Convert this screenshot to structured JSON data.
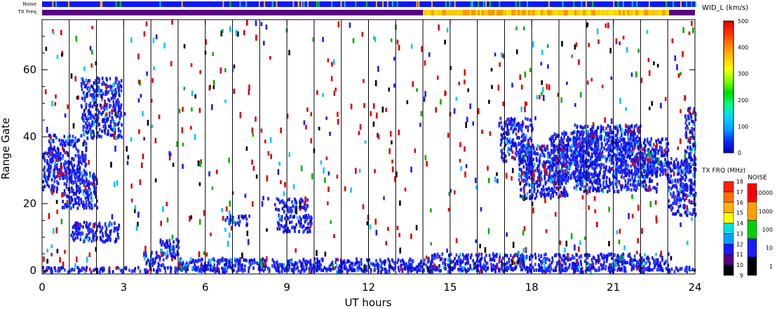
{
  "chart_data": {
    "type": "heatmap",
    "strips": {
      "noise_label": "Noise",
      "txfreq_label": "TX Freq",
      "noise_color": "#0d1aff",
      "txfreq_base_color": "#5a0080",
      "txfreq_high_segment": {
        "x_start": 14.0,
        "x_end": 23.0,
        "colors": [
          "#ff9a00",
          "#ffd000",
          "#ffe600"
        ]
      }
    },
    "xlabel": "UT hours",
    "ylabel": "Range Gate",
    "xlim": [
      0,
      24
    ],
    "ylim": [
      -1,
      75
    ],
    "x_ticks": [
      0,
      3,
      6,
      9,
      12,
      15,
      18,
      21,
      24
    ],
    "y_ticks": [
      0,
      20,
      40,
      60
    ],
    "hour_lines": [
      1,
      2,
      3,
      4,
      5,
      6,
      7,
      8,
      9,
      10,
      11,
      12,
      13,
      14,
      15,
      16,
      17,
      18,
      19,
      20,
      21,
      22,
      23
    ],
    "regions": [
      {
        "x0": 0.0,
        "x1": 24.0,
        "y0": 0,
        "y1": 1.5
      },
      {
        "x0": 5.0,
        "x1": 14.0,
        "y0": 0.5,
        "y1": 4
      },
      {
        "x0": 14.0,
        "x1": 23.0,
        "y0": 0.5,
        "y1": 5.5
      },
      {
        "x0": 3.7,
        "x1": 4.5,
        "y0": 2,
        "y1": 6
      },
      {
        "x0": 4.3,
        "x1": 5.0,
        "y0": 4,
        "y1": 10
      },
      {
        "x0": 0.0,
        "x1": 0.6,
        "y0": 24,
        "y1": 36
      },
      {
        "x0": 0.2,
        "x1": 1.6,
        "y0": 28,
        "y1": 41
      },
      {
        "x0": 1.4,
        "x1": 2.9,
        "y0": 40,
        "y1": 58
      },
      {
        "x0": 0.7,
        "x1": 2.0,
        "y0": 19,
        "y1": 30
      },
      {
        "x0": 1.0,
        "x1": 2.8,
        "y0": 9,
        "y1": 15
      },
      {
        "x0": 6.7,
        "x1": 7.6,
        "y0": 14,
        "y1": 17
      },
      {
        "x0": 8.5,
        "x1": 9.8,
        "y0": 18,
        "y1": 22
      },
      {
        "x0": 8.6,
        "x1": 9.9,
        "y0": 12,
        "y1": 17
      },
      {
        "x0": 16.8,
        "x1": 18.0,
        "y0": 33,
        "y1": 46
      },
      {
        "x0": 17.5,
        "x1": 19.3,
        "y0": 22,
        "y1": 38
      },
      {
        "x0": 18.6,
        "x1": 20.5,
        "y0": 27,
        "y1": 42
      },
      {
        "x0": 19.5,
        "x1": 22.0,
        "y0": 24,
        "y1": 44
      },
      {
        "x0": 21.0,
        "x1": 23.0,
        "y0": 28,
        "y1": 40
      },
      {
        "x0": 22.0,
        "x1": 22.6,
        "y0": 24,
        "y1": 34
      },
      {
        "x0": 23.0,
        "x1": 24.0,
        "y0": 17,
        "y1": 34
      },
      {
        "x0": 23.6,
        "x1": 24.0,
        "y0": 30,
        "y1": 49
      }
    ],
    "colorbars": [
      {
        "title": "WID_L (km/s)",
        "range": [
          0,
          500
        ],
        "ticks": [
          0,
          100,
          200,
          300,
          400,
          500
        ],
        "colors": [
          "#0000c8",
          "#0a2cff",
          "#00a0ff",
          "#00d8ff",
          "#00ff80",
          "#00d800",
          "#80ff00",
          "#ffff00",
          "#ffc000",
          "#ff8000",
          "#ff3000",
          "#e00000"
        ]
      },
      {
        "title": "TX FRQ (MHz)",
        "labels": [
          "9",
          "10",
          "11",
          "12",
          "13",
          "14",
          "15",
          "16",
          "17",
          "18"
        ],
        "colors": [
          "#000000",
          "#5a0080",
          "#1a1aff",
          "#00a0ff",
          "#00e0e0",
          "#ffff00",
          "#ffb000",
          "#ff7000",
          "#ff2000"
        ]
      },
      {
        "title": "NOISE",
        "labels": [
          "1",
          "10",
          "100",
          "1000",
          "10000"
        ],
        "colors": [
          "#000000",
          "#1a1aff",
          "#00d000",
          "#ffa000",
          "#ff0000"
        ]
      }
    ]
  }
}
